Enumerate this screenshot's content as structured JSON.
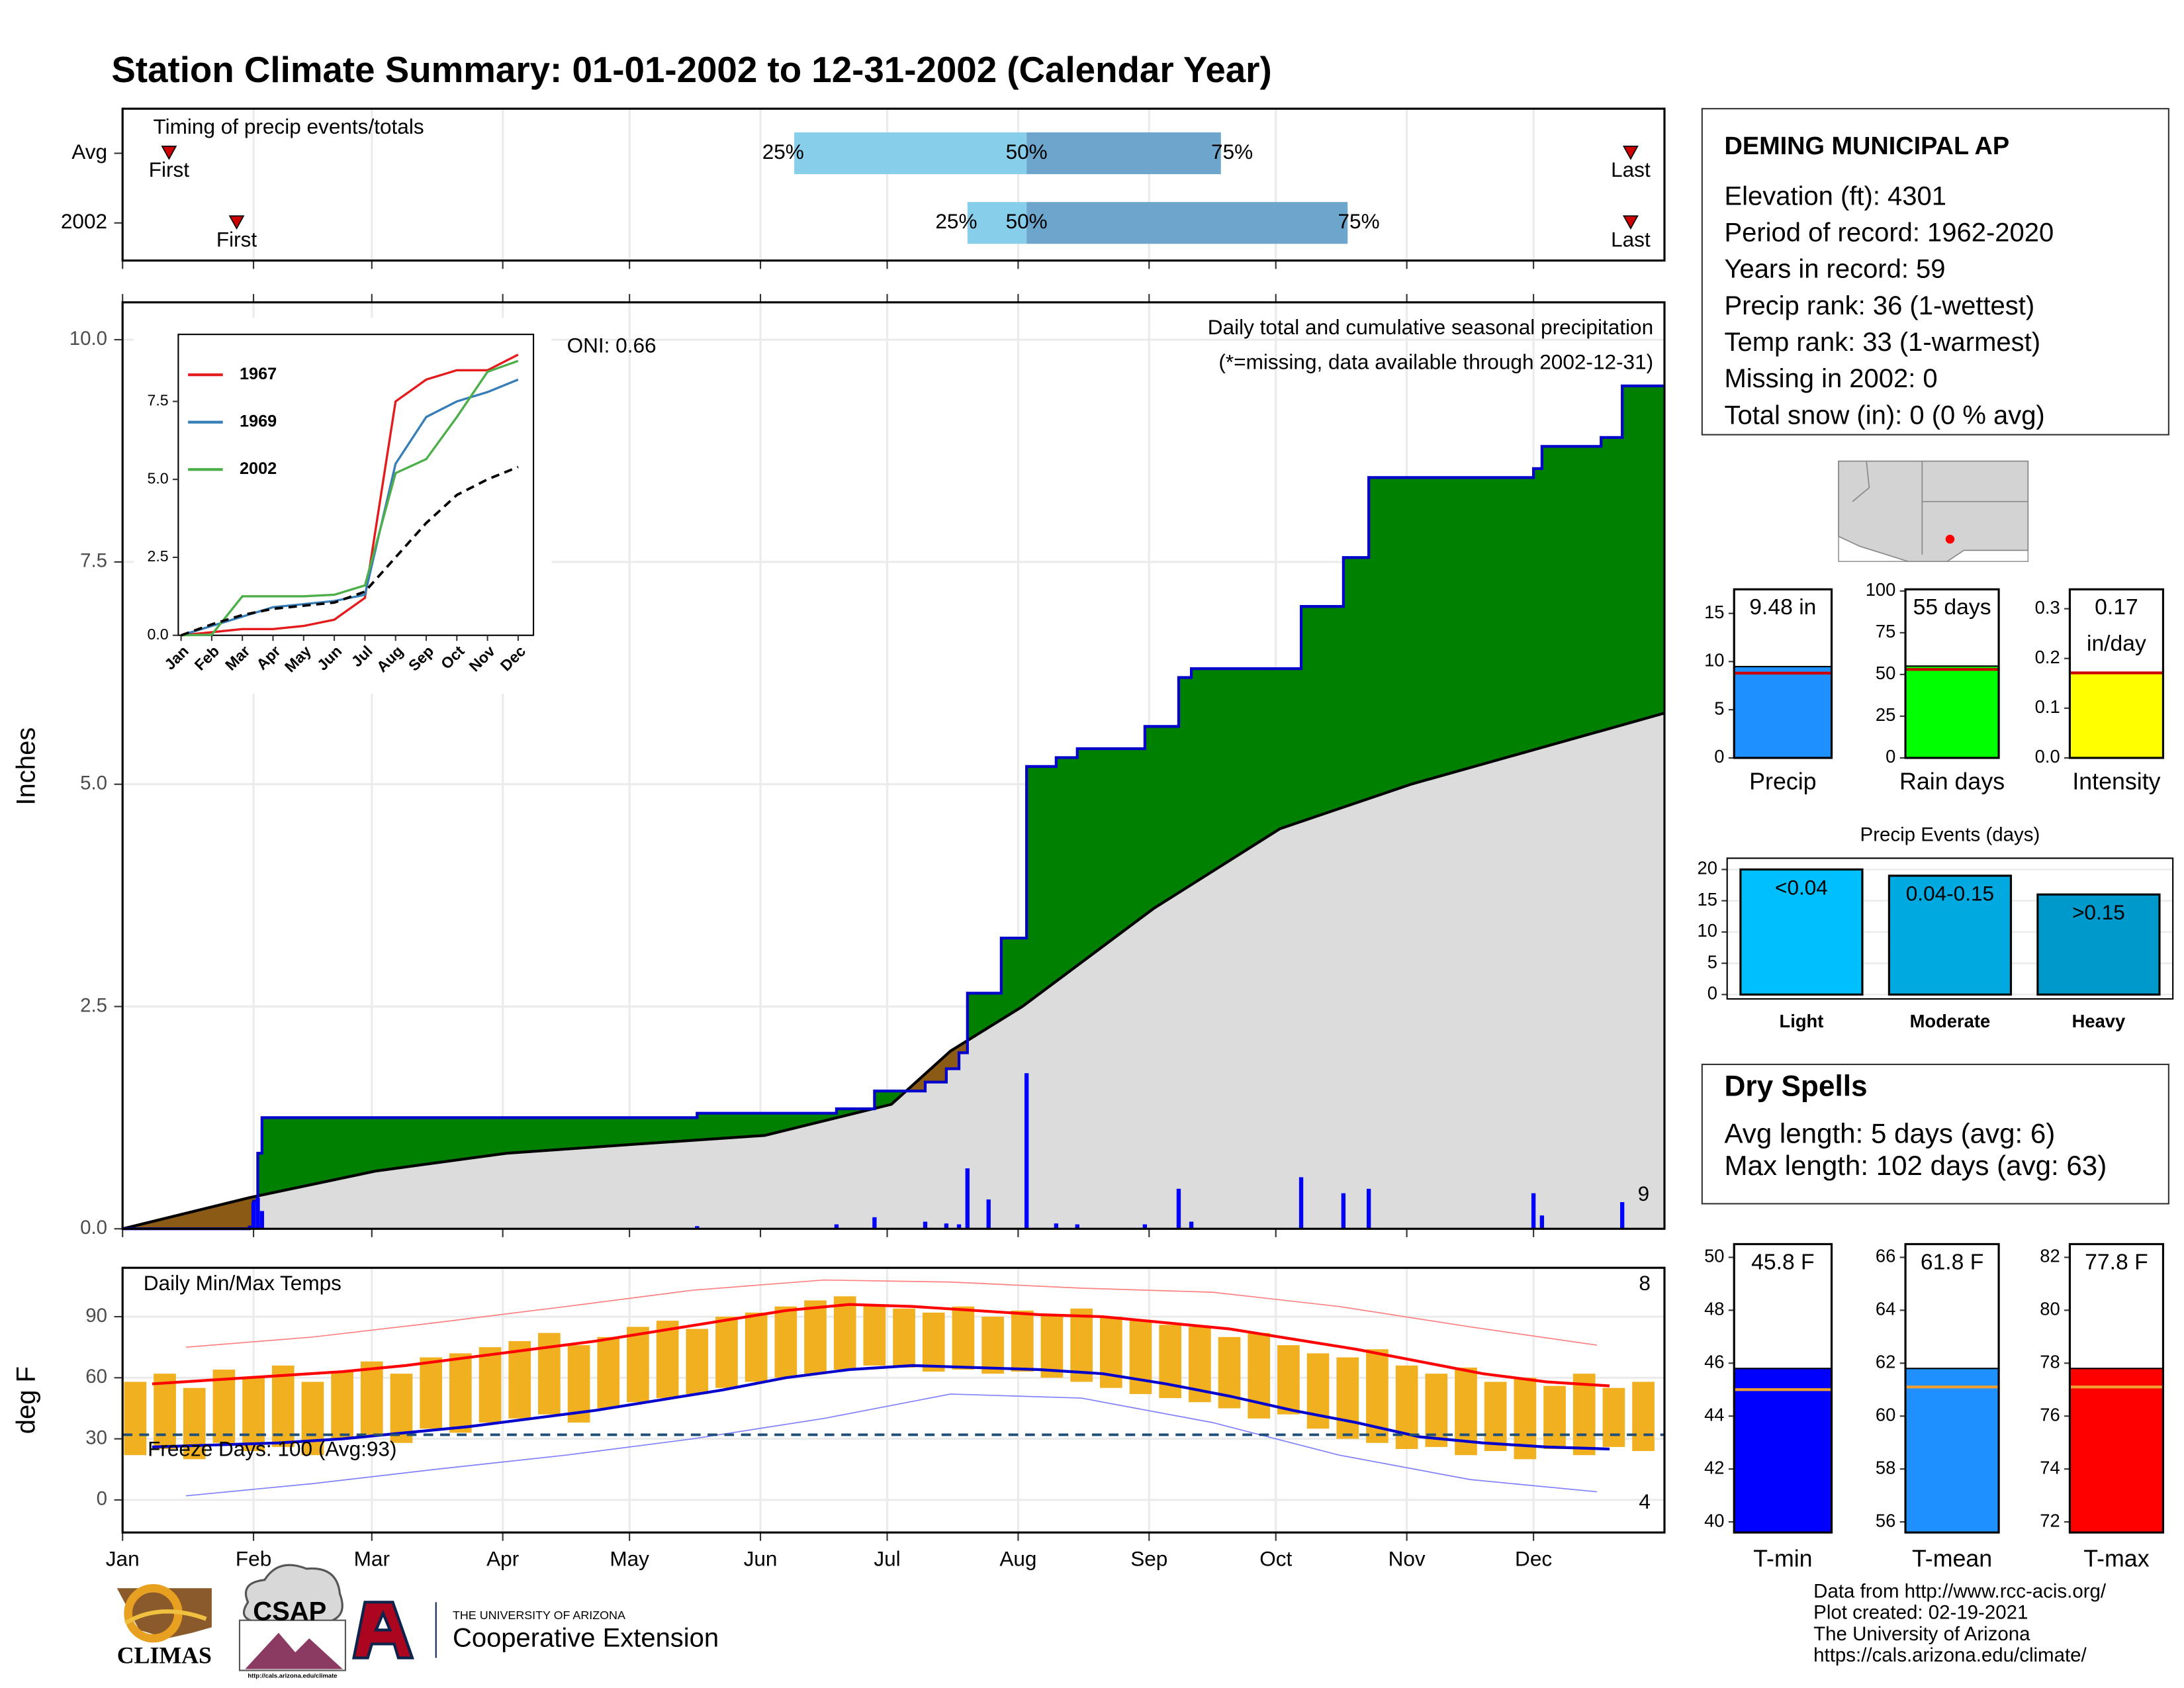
{
  "title": "Station Climate Summary: 01-01-2002 to 12-31-2002 (Calendar Year)",
  "station": {
    "name": "DEMING MUNICIPAL AP",
    "lines": [
      "Elevation (ft): 4301",
      "Period of record: 1962-2020",
      "Years in record: 59",
      "Precip rank: 36 (1-wettest)",
      "Temp rank: 33 (1-warmest)",
      "Missing in 2002: 0",
      "Total snow (in): 0 (0 % avg)"
    ]
  },
  "dry_spells": {
    "title": "Dry Spells",
    "lines": [
      "Avg length: 5 days (avg: 6)",
      "Max length: 102 days (avg: 63)"
    ]
  },
  "footer": {
    "logos": [
      "CLIMAS",
      "CSAP",
      "http://cals.arizona.edu/climate",
      "THE UNIVERSITY OF ARIZONA",
      "Cooperative Extension"
    ],
    "credits": [
      "Data from http://www.rcc-acis.org/",
      "Plot created: 02-19-2021",
      "The University of Arizona",
      "https://cals.arizona.edu/climate/"
    ]
  },
  "chart_data": [
    {
      "type": "range",
      "title": "Timing of precip events/totals",
      "categories": [
        "Avg",
        "2002"
      ],
      "xlim": [
        0,
        365
      ],
      "first": [
        11,
        27
      ],
      "last": [
        357,
        357
      ],
      "p25": [
        159,
        200
      ],
      "p50": [
        214,
        214
      ],
      "p75": [
        260,
        290
      ],
      "labels": {
        "first": "First",
        "last": "Last",
        "p25": "25%",
        "p50": "50%",
        "p75": "75%"
      },
      "colors": {
        "lower": "#87ceeb",
        "upper": "#6ca6cd",
        "marker": "#cc0000"
      }
    },
    {
      "type": "area",
      "title": "Daily total and cumulative seasonal precipitation",
      "subtitle": "(*=missing, data available through 2002-12-31)",
      "annotation": "ONI: 0.66",
      "count_label": "9",
      "y_label": "Inches",
      "xlim": [
        0,
        365
      ],
      "ylim": [
        0,
        10.42
      ],
      "yticks": [
        {
          "value": 0,
          "label": "0.0"
        },
        {
          "value": 2.5,
          "label": "2.5"
        },
        {
          "value": 5,
          "label": "5.0"
        },
        {
          "value": 7.5,
          "label": "7.5"
        },
        {
          "value": 10,
          "label": "10.0"
        }
      ],
      "grid": true,
      "series": [
        {
          "x": [
            0,
            30,
            31,
            32,
            33,
            136,
            169,
            178,
            190,
            195,
            198,
            200,
            208,
            214,
            221,
            226,
            242,
            250,
            253,
            279,
            289,
            295,
            334,
            336,
            350,
            355
          ],
          "values": [
            0,
            0.02,
            0.31,
            0.85,
            1.25,
            1.3,
            1.35,
            1.55,
            1.65,
            1.8,
            1.98,
            2.65,
            3.27,
            5.2,
            5.3,
            5.4,
            5.65,
            6.2,
            6.3,
            7.0,
            7.55,
            8.45,
            8.55,
            8.8,
            8.9,
            9.48
          ],
          "color": "#008000",
          "line": "#0000cc",
          "below_avg_color": "#8b5a14"
        },
        {
          "x": [
            0,
            30,
            60,
            91,
            121,
            152,
            182,
            196,
            213,
            244,
            274,
            305,
            335,
            365
          ],
          "values": [
            0,
            0.35,
            0.65,
            0.85,
            0.95,
            1.05,
            1.4,
            2.0,
            2.5,
            3.6,
            4.5,
            5.0,
            5.4,
            5.8
          ],
          "color": "#dcdcdc",
          "line": "#000000"
        },
        {
          "x": [
            31,
            32,
            33,
            136,
            169,
            178,
            190,
            195,
            198,
            200,
            205,
            214,
            221,
            226,
            242,
            250,
            253,
            279,
            289,
            295,
            334,
            336,
            355
          ],
          "values": [
            0.3,
            0.35,
            0.2,
            0.03,
            0.05,
            0.13,
            0.08,
            0.06,
            0.05,
            0.68,
            0.33,
            1.75,
            0.06,
            0.05,
            0.05,
            0.45,
            0.08,
            0.58,
            0.4,
            0.45,
            0.4,
            0.15,
            0.3
          ],
          "color": "#0000ff"
        }
      ],
      "count_color": "#ffa500"
    },
    {
      "type": "line",
      "categories": [
        "Jan",
        "Feb",
        "Mar",
        "Apr",
        "May",
        "Jun",
        "Jul",
        "Aug",
        "Sep",
        "Oct",
        "Nov",
        "Dec"
      ],
      "ylim": [
        0,
        9.65
      ],
      "yticks": [
        {
          "value": 0,
          "label": "0.0"
        },
        {
          "value": 2.5,
          "label": "2.5"
        },
        {
          "value": 5,
          "label": "5.0"
        },
        {
          "value": 7.5,
          "label": "7.5"
        }
      ],
      "series": [
        {
          "name": "1967",
          "color": "#e41a1c",
          "values": [
            0,
            0.1,
            0.2,
            0.2,
            0.3,
            0.5,
            1.2,
            7.5,
            8.2,
            8.5,
            8.5,
            9.0
          ]
        },
        {
          "name": "1969",
          "color": "#377eb8",
          "values": [
            0,
            0.3,
            0.6,
            0.9,
            1.0,
            1.1,
            1.3,
            5.5,
            7.0,
            7.5,
            7.8,
            8.2
          ]
        },
        {
          "name": "2002",
          "color": "#4daf4a",
          "values": [
            0,
            0.02,
            1.25,
            1.25,
            1.25,
            1.3,
            1.6,
            5.2,
            5.65,
            7.0,
            8.45,
            8.8
          ]
        },
        {
          "color": "#000000",
          "dash": true,
          "values": [
            0,
            0.35,
            0.65,
            0.85,
            0.95,
            1.05,
            1.4,
            2.5,
            3.6,
            4.5,
            5.0,
            5.4
          ]
        }
      ]
    },
    {
      "type": "temperature",
      "title": "Daily Min/Max Temps",
      "annotation": "Freeze Days: 100 (Avg:93)",
      "high_count": "8",
      "low_count": "4",
      "y_label": "deg F",
      "xlim": [
        0,
        365
      ],
      "ylim": [
        -16,
        114
      ],
      "yticks": [
        0,
        30,
        60,
        90
      ],
      "freeze_line": 32,
      "xticks": [
        {
          "value": 0,
          "label": "Jan"
        },
        {
          "value": 31,
          "label": "Feb"
        },
        {
          "value": 59,
          "label": "Mar"
        },
        {
          "value": 90,
          "label": "Apr"
        },
        {
          "value": 120,
          "label": "May"
        },
        {
          "value": 151,
          "label": "Jun"
        },
        {
          "value": 181,
          "label": "Jul"
        },
        {
          "value": 212,
          "label": "Aug"
        },
        {
          "value": 243,
          "label": "Sep"
        },
        {
          "value": 273,
          "label": "Oct"
        },
        {
          "value": 304,
          "label": "Nov"
        },
        {
          "value": 334,
          "label": "Dec"
        }
      ],
      "daily": {
        "x": [
          3,
          10,
          17,
          24,
          31,
          38,
          45,
          52,
          59,
          66,
          73,
          80,
          87,
          94,
          101,
          108,
          115,
          122,
          129,
          136,
          143,
          150,
          157,
          164,
          171,
          178,
          185,
          192,
          199,
          206,
          213,
          220,
          227,
          234,
          241,
          248,
          255,
          262,
          269,
          276,
          283,
          290,
          297,
          304,
          311,
          318,
          325,
          332,
          339,
          346,
          353,
          360
        ],
        "max": [
          58,
          62,
          55,
          64,
          60,
          66,
          58,
          63,
          68,
          62,
          70,
          72,
          75,
          78,
          82,
          76,
          80,
          85,
          88,
          84,
          90,
          92,
          95,
          98,
          100,
          96,
          94,
          92,
          95,
          90,
          93,
          91,
          94,
          90,
          88,
          86,
          85,
          80,
          82,
          76,
          72,
          70,
          74,
          66,
          62,
          65,
          58,
          60,
          56,
          62,
          55,
          58
        ],
        "min": [
          22,
          25,
          20,
          28,
          24,
          26,
          22,
          30,
          32,
          28,
          35,
          33,
          38,
          40,
          42,
          38,
          45,
          48,
          50,
          52,
          55,
          58,
          60,
          62,
          64,
          66,
          65,
          63,
          64,
          62,
          63,
          60,
          58,
          55,
          52,
          50,
          48,
          45,
          40,
          42,
          35,
          30,
          28,
          25,
          26,
          22,
          24,
          20,
          25,
          22,
          26,
          24
        ],
        "color": "#f0b020"
      },
      "normals": {
        "x": [
          7,
          22,
          37,
          52,
          67,
          82,
          97,
          112,
          127,
          142,
          157,
          172,
          187,
          202,
          217,
          232,
          247,
          262,
          277,
          292,
          307,
          322,
          337,
          352
        ],
        "max": [
          57,
          59,
          61,
          63,
          66,
          70,
          74,
          78,
          83,
          88,
          93,
          96,
          95,
          93,
          91,
          90,
          87,
          84,
          79,
          74,
          68,
          62,
          58,
          56
        ],
        "min": [
          26,
          27,
          28,
          30,
          33,
          36,
          40,
          44,
          49,
          54,
          60,
          64,
          66,
          65,
          64,
          62,
          57,
          51,
          44,
          38,
          31,
          28,
          26,
          25
        ],
        "max_color": "#ff0000",
        "min_color": "#0000cc"
      },
      "records": {
        "x": [
          15,
          45,
          74,
          105,
          135,
          166,
          196,
          227,
          258,
          288,
          319,
          349
        ],
        "max": [
          75,
          80,
          87,
          95,
          103,
          108,
          107,
          104,
          102,
          95,
          85,
          76
        ],
        "min": [
          2,
          8,
          15,
          22,
          30,
          40,
          52,
          50,
          38,
          22,
          10,
          4
        ],
        "max_color": "#ff8080",
        "min_color": "#8080ff"
      },
      "freeze_color": "#1f4e79"
    },
    {
      "type": "bar",
      "categories": [
        "Precip"
      ],
      "values": [
        9.48
      ],
      "value_labels": [
        "9.48 in"
      ],
      "avg": 8.8,
      "ylim": [
        0,
        17.5
      ],
      "yticks": [
        0,
        5,
        10,
        15
      ],
      "color": "#1e90ff",
      "avg_color": "#cc0000"
    },
    {
      "type": "bar",
      "categories": [
        "Rain days"
      ],
      "values": [
        55
      ],
      "value_labels": [
        "55 days"
      ],
      "avg": 53,
      "ylim": [
        0,
        101
      ],
      "yticks": [
        0,
        25,
        50,
        75,
        100
      ],
      "color": "#00ff00",
      "avg_color": "#cc0000"
    },
    {
      "type": "bar",
      "categories": [
        "Intensity"
      ],
      "values": [
        0.17
      ],
      "value_labels": [
        "0.17 in/day"
      ],
      "avg": 0.171,
      "ylim": [
        0,
        0.339
      ],
      "yticks": [
        {
          "value": 0,
          "label": "0.0"
        },
        0.1,
        0.2,
        0.3
      ],
      "color": "#ffff00",
      "avg_color": "#cc0000"
    },
    {
      "type": "bar",
      "title": "Precip Events (days)",
      "categories": [
        "Light",
        "Moderate",
        "Heavy"
      ],
      "values": [
        20,
        19,
        16
      ],
      "value_labels": [
        "<0.04",
        "0.04-0.15",
        ">0.15"
      ],
      "ylim": [
        -0.7,
        21.8
      ],
      "yticks": [
        0,
        5,
        10,
        15,
        20
      ],
      "grid": true,
      "colors": [
        "#00bfff",
        "#00a9e0",
        "#0099cc"
      ]
    },
    {
      "type": "bar",
      "categories": [
        "T-min"
      ],
      "values": [
        45.8
      ],
      "value_labels": [
        "45.8 F"
      ],
      "avg": 45.0,
      "ylim": [
        39.6,
        50.5
      ],
      "yticks": [
        40,
        42,
        44,
        46,
        48,
        50
      ],
      "color": "#0000ff",
      "avg_color": "#f0a030"
    },
    {
      "type": "bar",
      "categories": [
        "T-mean"
      ],
      "values": [
        61.8
      ],
      "value_labels": [
        "61.8 F"
      ],
      "avg": 61.1,
      "ylim": [
        55.6,
        66.5
      ],
      "yticks": [
        56,
        58,
        60,
        62,
        64,
        66
      ],
      "color": "#1e90ff",
      "avg_color": "#f0a030"
    },
    {
      "type": "bar",
      "categories": [
        "T-max"
      ],
      "values": [
        77.8
      ],
      "value_labels": [
        "77.8 F"
      ],
      "avg": 77.1,
      "ylim": [
        71.6,
        82.5
      ],
      "yticks": [
        72,
        74,
        76,
        78,
        80,
        82
      ],
      "color": "#ff0000",
      "avg_color": "#f0a030"
    }
  ]
}
